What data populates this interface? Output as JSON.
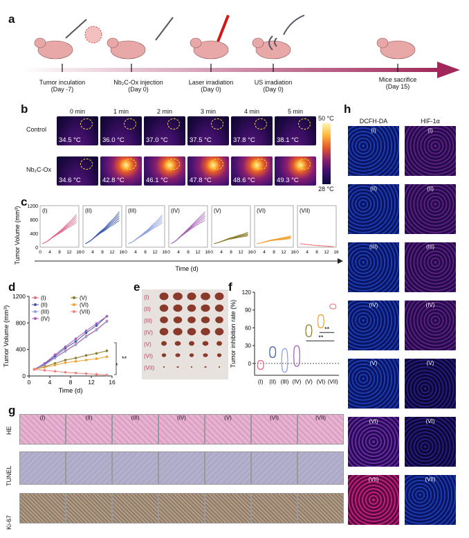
{
  "panels": {
    "a": "a",
    "b": "b",
    "c": "c",
    "d": "d",
    "e": "e",
    "f": "f",
    "g": "g",
    "h": "h"
  },
  "timeline": [
    {
      "label": "Tumor inculation",
      "day": "(Day -7)"
    },
    {
      "label": "Nb₂C-Ox injection",
      "day": "(Day 0)"
    },
    {
      "label": "Laser irradiation",
      "day": "(Day 0)"
    },
    {
      "label": "US irradiation",
      "day": "(Day 0)"
    },
    {
      "label": "Mice sacrifice",
      "day": "(Day 15)"
    }
  ],
  "thermal": {
    "times": [
      "0 min",
      "1 min",
      "2 min",
      "3 min",
      "4 min",
      "5 min"
    ],
    "rows": [
      {
        "label": "Control",
        "temps": [
          "34.5 °C",
          "36.0 °C",
          "37.0 °C",
          "37.5 °C",
          "37.8 °C",
          "38.1 °C"
        ]
      },
      {
        "label": "Nb₂C-Ox",
        "temps": [
          "34.6 °C",
          "42.8 °C",
          "46.1 °C",
          "47.8 °C",
          "48.6 °C",
          "49.3 °C"
        ]
      }
    ],
    "scale_max": "50 °C",
    "scale_min": "28 °C"
  },
  "groups": [
    "(I)",
    "(II)",
    "(III)",
    "(IV)",
    "(V)",
    "(VI)",
    "(VII)"
  ],
  "panel_c": {
    "ylabel": "Tumor Volume (mm³)",
    "xlabel": "Time (d)",
    "yticks": [
      "0",
      "400",
      "800",
      "1200"
    ],
    "xticks": [
      "0",
      "4",
      "8",
      "12",
      "16"
    ]
  },
  "chart_data": [
    {
      "type": "line",
      "panel": "d",
      "xlabel": "Time (d)",
      "ylabel": "Tumor Volume (mm³)",
      "xlim": [
        0,
        16
      ],
      "ylim": [
        0,
        1200
      ],
      "x": [
        1,
        3,
        5,
        7,
        9,
        11,
        13,
        15
      ],
      "series": [
        {
          "name": "(I)",
          "color": "#e06a8a",
          "values": [
            100,
            170,
            280,
            380,
            480,
            600,
            700,
            830
          ]
        },
        {
          "name": "(II)",
          "color": "#3a57b0",
          "values": [
            100,
            180,
            300,
            420,
            520,
            650,
            760,
            900
          ]
        },
        {
          "name": "(III)",
          "color": "#8ea0e0",
          "values": [
            100,
            165,
            270,
            370,
            470,
            590,
            690,
            820
          ]
        },
        {
          "name": "(IV)",
          "color": "#a45fb5",
          "values": [
            100,
            190,
            320,
            440,
            560,
            680,
            790,
            900
          ]
        },
        {
          "name": "(V)",
          "color": "#8c7a2c",
          "values": [
            100,
            140,
            190,
            240,
            270,
            310,
            340,
            380
          ]
        },
        {
          "name": "(VI)",
          "color": "#f0a030",
          "values": [
            100,
            130,
            165,
            200,
            220,
            240,
            260,
            290
          ]
        },
        {
          "name": "(VII)",
          "color": "#f08080",
          "values": [
            100,
            85,
            70,
            55,
            45,
            35,
            25,
            15
          ]
        }
      ],
      "annotations": [
        "*",
        "**"
      ]
    },
    {
      "type": "violin",
      "panel": "f",
      "ylabel": "Tumor inhibition rate (%)",
      "ylim": [
        -20,
        120
      ],
      "categories": [
        "(I)",
        "(II)",
        "(III)",
        "(IV)",
        "(V)",
        "(VI)",
        "(VII)"
      ],
      "colors": [
        "#e06a8a",
        "#3a57b0",
        "#8ea0e0",
        "#a45fb5",
        "#8c7a2c",
        "#f0a030",
        "#f08080"
      ],
      "ranges": [
        [
          -10,
          5
        ],
        [
          10,
          28
        ],
        [
          -15,
          25
        ],
        [
          -5,
          30
        ],
        [
          45,
          65
        ],
        [
          60,
          82
        ],
        [
          92,
          100
        ]
      ],
      "annotations": [
        "**",
        "**"
      ]
    }
  ],
  "panel_g": {
    "rows": [
      "HE",
      "TUNEL",
      "Ki-67"
    ]
  },
  "panel_h": {
    "cols": [
      "DCFH-DA",
      "HIF-1α"
    ]
  }
}
